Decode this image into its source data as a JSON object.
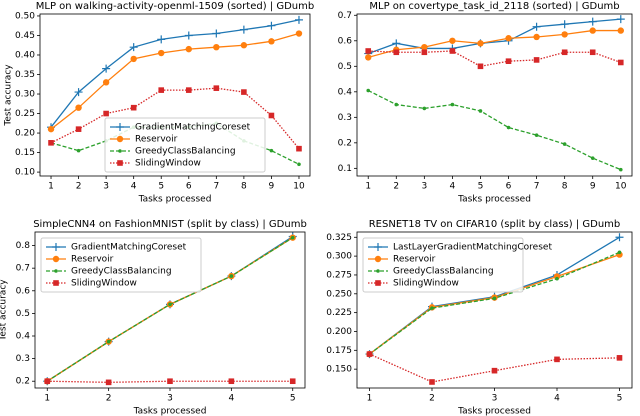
{
  "chart_data": [
    {
      "type": "line",
      "title": "MLP on walking-activity-openml-1509 (sorted) | GDumb",
      "xlabel": "Tasks processed",
      "ylabel": "Test accuracy",
      "x": [
        1,
        2,
        3,
        4,
        5,
        6,
        7,
        8,
        9,
        10
      ],
      "xlim": [
        0.6,
        10.4
      ],
      "xticks": [
        1,
        2,
        3,
        4,
        5,
        6,
        7,
        8,
        9,
        10
      ],
      "ylim": [
        0.09,
        0.505
      ],
      "yticks": [
        {
          "value": 0.1,
          "label": "0.10"
        },
        0.15,
        {
          "value": 0.2,
          "label": "0.20"
        },
        0.25,
        {
          "value": 0.3,
          "label": "0.30"
        },
        0.35,
        {
          "value": 0.4,
          "label": "0.40"
        },
        0.45,
        {
          "value": 0.5,
          "label": "0.50"
        }
      ],
      "legend": "lower right",
      "series": [
        {
          "name": "GradientMatchingCoreset",
          "color": "#1f77b4",
          "linestyle": "solid",
          "marker": "plus",
          "values": [
            0.215,
            0.305,
            0.365,
            0.42,
            0.44,
            0.45,
            0.455,
            0.465,
            0.475,
            0.49
          ]
        },
        {
          "name": "Reservoir",
          "color": "#ff7f0e",
          "linestyle": "solid",
          "marker": "circle",
          "values": [
            0.21,
            0.265,
            0.33,
            0.39,
            0.405,
            0.415,
            0.42,
            0.425,
            0.435,
            0.455
          ]
        },
        {
          "name": "GreedyClassBalancing",
          "color": "#2ca02c",
          "linestyle": "dashed",
          "marker": "dot",
          "values": [
            0.175,
            0.155,
            0.18,
            0.215,
            0.215,
            0.215,
            0.225,
            0.18,
            0.155,
            0.12
          ]
        },
        {
          "name": "SlidingWindow",
          "color": "#d62728",
          "linestyle": "dotted",
          "marker": "square",
          "values": [
            0.175,
            0.21,
            0.25,
            0.265,
            0.31,
            0.31,
            0.315,
            0.305,
            0.245,
            0.16
          ]
        }
      ]
    },
    {
      "type": "line",
      "title": "MLP on covertype_task_id_2118 (sorted) | GDumb",
      "xlabel": "Tasks processed",
      "x": [
        1,
        2,
        3,
        4,
        5,
        6,
        7,
        8,
        9,
        10
      ],
      "xlim": [
        0.6,
        10.4
      ],
      "xticks": [
        1,
        2,
        3,
        4,
        5,
        6,
        7,
        8,
        9,
        10
      ],
      "ylim": [
        0.07,
        0.705
      ],
      "yticks": [
        0.1,
        0.2,
        0.3,
        0.4,
        0.5,
        0.6,
        0.7
      ],
      "series": [
        {
          "name": "GradientMatchingCoreset",
          "color": "#1f77b4",
          "linestyle": "solid",
          "marker": "plus",
          "values": [
            0.55,
            0.59,
            0.57,
            0.57,
            0.59,
            0.6,
            0.655,
            0.665,
            0.675,
            0.685
          ]
        },
        {
          "name": "Reservoir",
          "color": "#ff7f0e",
          "linestyle": "solid",
          "marker": "circle",
          "values": [
            0.535,
            0.565,
            0.575,
            0.6,
            0.59,
            0.61,
            0.615,
            0.625,
            0.64,
            0.64
          ]
        },
        {
          "name": "GreedyClassBalancing",
          "color": "#2ca02c",
          "linestyle": "dashed",
          "marker": "dot",
          "values": [
            0.405,
            0.35,
            0.335,
            0.35,
            0.325,
            0.26,
            0.23,
            0.195,
            0.14,
            0.095
          ]
        },
        {
          "name": "SlidingWindow",
          "color": "#d62728",
          "linestyle": "dotted",
          "marker": "square",
          "values": [
            0.56,
            0.555,
            0.555,
            0.56,
            0.5,
            0.52,
            0.525,
            0.555,
            0.555,
            0.515
          ]
        }
      ]
    },
    {
      "type": "line",
      "title": "SimpleCNN4 on FashionMNIST (split by class) | GDumb",
      "xlabel": "Tasks processed",
      "ylabel": "Test accuracy",
      "x": [
        1,
        2,
        3,
        4,
        5
      ],
      "xlim": [
        0.8,
        5.2
      ],
      "xticks": [
        1,
        2,
        3,
        4,
        5
      ],
      "ylim": [
        0.17,
        0.86
      ],
      "yticks": [
        0.2,
        0.3,
        0.4,
        0.5,
        0.6,
        0.7,
        0.8
      ],
      "legend": "upper left",
      "series": [
        {
          "name": "GradientMatchingCoreset",
          "color": "#1f77b4",
          "linestyle": "solid",
          "marker": "plus",
          "values": [
            0.2,
            0.375,
            0.54,
            0.665,
            0.84
          ]
        },
        {
          "name": "Reservoir",
          "color": "#ff7f0e",
          "linestyle": "solid",
          "marker": "circle",
          "values": [
            0.2,
            0.375,
            0.54,
            0.665,
            0.835
          ]
        },
        {
          "name": "GreedyClassBalancing",
          "color": "#2ca02c",
          "linestyle": "dashed",
          "marker": "dot",
          "values": [
            0.2,
            0.375,
            0.54,
            0.665,
            0.835
          ]
        },
        {
          "name": "SlidingWindow",
          "color": "#d62728",
          "linestyle": "dotted",
          "marker": "square",
          "values": [
            0.2,
            0.195,
            0.2,
            0.2,
            0.2
          ]
        }
      ]
    },
    {
      "type": "line",
      "title": "RESNET18 TV on CIFAR10 (split by class) | GDumb",
      "xlabel": "Tasks processed",
      "x": [
        1,
        2,
        3,
        4,
        5
      ],
      "xlim": [
        0.8,
        5.2
      ],
      "xticks": [
        1,
        2,
        3,
        4,
        5
      ],
      "ylim": [
        0.125,
        0.332
      ],
      "yticks": [
        {
          "value": 0.15,
          "label": "0.150"
        },
        0.175,
        {
          "value": 0.2,
          "label": "0.200"
        },
        0.225,
        {
          "value": 0.25,
          "label": "0.250"
        },
        0.275,
        {
          "value": 0.3,
          "label": "0.300"
        },
        0.325
      ],
      "legend": "upper left",
      "series": [
        {
          "name": "LastLayerGradientMatchingCoreset",
          "color": "#1f77b4",
          "linestyle": "solid",
          "marker": "plus",
          "values": [
            0.17,
            0.233,
            0.246,
            0.275,
            0.325
          ]
        },
        {
          "name": "Reservoir",
          "color": "#ff7f0e",
          "linestyle": "solid",
          "marker": "circle",
          "values": [
            0.17,
            0.232,
            0.245,
            0.273,
            0.302
          ]
        },
        {
          "name": "GreedyClassBalancing",
          "color": "#2ca02c",
          "linestyle": "dashed",
          "marker": "dot",
          "values": [
            0.17,
            0.231,
            0.244,
            0.27,
            0.305
          ]
        },
        {
          "name": "SlidingWindow",
          "color": "#d62728",
          "linestyle": "dotted",
          "marker": "square",
          "values": [
            0.17,
            0.133,
            0.148,
            0.163,
            0.165
          ]
        }
      ]
    }
  ]
}
